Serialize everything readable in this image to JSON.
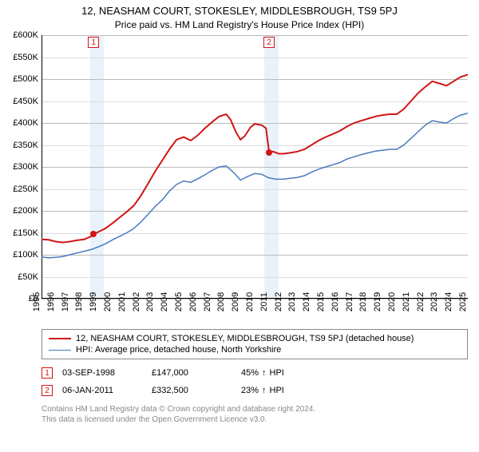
{
  "title": {
    "line1": "12, NEASHAM COURT, STOKESLEY, MIDDLESBROUGH, TS9 5PJ",
    "line2": "Price paid vs. HM Land Registry's House Price Index (HPI)"
  },
  "chart": {
    "type": "line",
    "ylim": [
      0,
      600000
    ],
    "ytick_step": 50000,
    "xlim": [
      1995,
      2025
    ],
    "xtick_step": 1,
    "currency_prefix": "£",
    "grid_color": "#dddddd",
    "grid_color_dark": "#bbbbbb",
    "axis_color": "#000000",
    "background_color": "#ffffff",
    "shade_color": "#e9f2fb",
    "shade_ranges": [
      [
        1998.4,
        1999.4
      ],
      [
        2010.7,
        2011.7
      ]
    ],
    "markers_top": [
      {
        "n": "1",
        "x": 1998.67,
        "color": "#d01515"
      },
      {
        "n": "2",
        "x": 2011.02,
        "color": "#d01515"
      }
    ],
    "sale_points": [
      {
        "x": 1998.67,
        "y": 147000,
        "color": "#d01515"
      },
      {
        "x": 2011.02,
        "y": 332500,
        "color": "#d01515"
      }
    ],
    "series": [
      {
        "name": "property",
        "color": "#d01515",
        "width": 2,
        "points": [
          [
            1995.0,
            135000
          ],
          [
            1995.5,
            134000
          ],
          [
            1996.0,
            130000
          ],
          [
            1996.5,
            128000
          ],
          [
            1997.0,
            130000
          ],
          [
            1997.5,
            133000
          ],
          [
            1998.0,
            135000
          ],
          [
            1998.5,
            142000
          ],
          [
            1998.67,
            147000
          ],
          [
            1999.0,
            152000
          ],
          [
            1999.5,
            160000
          ],
          [
            2000.0,
            172000
          ],
          [
            2000.5,
            185000
          ],
          [
            2001.0,
            198000
          ],
          [
            2001.5,
            212000
          ],
          [
            2002.0,
            235000
          ],
          [
            2002.5,
            262000
          ],
          [
            2003.0,
            290000
          ],
          [
            2003.5,
            315000
          ],
          [
            2004.0,
            340000
          ],
          [
            2004.5,
            362000
          ],
          [
            2005.0,
            368000
          ],
          [
            2005.5,
            360000
          ],
          [
            2006.0,
            372000
          ],
          [
            2006.5,
            388000
          ],
          [
            2007.0,
            402000
          ],
          [
            2007.5,
            415000
          ],
          [
            2008.0,
            420000
          ],
          [
            2008.3,
            408000
          ],
          [
            2008.7,
            378000
          ],
          [
            2009.0,
            362000
          ],
          [
            2009.3,
            370000
          ],
          [
            2009.7,
            390000
          ],
          [
            2010.0,
            398000
          ],
          [
            2010.5,
            395000
          ],
          [
            2010.8,
            388000
          ],
          [
            2011.02,
            332500
          ],
          [
            2011.3,
            335000
          ],
          [
            2011.7,
            330000
          ],
          [
            2012.0,
            330000
          ],
          [
            2012.5,
            332000
          ],
          [
            2013.0,
            335000
          ],
          [
            2013.5,
            340000
          ],
          [
            2014.0,
            350000
          ],
          [
            2014.5,
            360000
          ],
          [
            2015.0,
            368000
          ],
          [
            2015.5,
            375000
          ],
          [
            2016.0,
            382000
          ],
          [
            2016.5,
            392000
          ],
          [
            2017.0,
            400000
          ],
          [
            2017.5,
            405000
          ],
          [
            2018.0,
            410000
          ],
          [
            2018.5,
            415000
          ],
          [
            2019.0,
            418000
          ],
          [
            2019.5,
            420000
          ],
          [
            2020.0,
            420000
          ],
          [
            2020.5,
            432000
          ],
          [
            2021.0,
            450000
          ],
          [
            2021.5,
            468000
          ],
          [
            2022.0,
            482000
          ],
          [
            2022.5,
            495000
          ],
          [
            2023.0,
            490000
          ],
          [
            2023.5,
            485000
          ],
          [
            2024.0,
            495000
          ],
          [
            2024.5,
            505000
          ],
          [
            2025.0,
            510000
          ]
        ]
      },
      {
        "name": "hpi",
        "color": "#4a7abf",
        "width": 1.5,
        "points": [
          [
            1995.0,
            95000
          ],
          [
            1995.5,
            93000
          ],
          [
            1996.0,
            94000
          ],
          [
            1996.5,
            96000
          ],
          [
            1997.0,
            100000
          ],
          [
            1997.5,
            104000
          ],
          [
            1998.0,
            108000
          ],
          [
            1998.5,
            112000
          ],
          [
            1999.0,
            118000
          ],
          [
            1999.5,
            125000
          ],
          [
            2000.0,
            134000
          ],
          [
            2000.5,
            142000
          ],
          [
            2001.0,
            150000
          ],
          [
            2001.5,
            160000
          ],
          [
            2002.0,
            175000
          ],
          [
            2002.5,
            192000
          ],
          [
            2003.0,
            210000
          ],
          [
            2003.5,
            225000
          ],
          [
            2004.0,
            245000
          ],
          [
            2004.5,
            260000
          ],
          [
            2005.0,
            268000
          ],
          [
            2005.5,
            265000
          ],
          [
            2006.0,
            273000
          ],
          [
            2006.5,
            282000
          ],
          [
            2007.0,
            292000
          ],
          [
            2007.5,
            300000
          ],
          [
            2008.0,
            302000
          ],
          [
            2008.5,
            288000
          ],
          [
            2009.0,
            270000
          ],
          [
            2009.5,
            278000
          ],
          [
            2010.0,
            285000
          ],
          [
            2010.5,
            283000
          ],
          [
            2011.0,
            275000
          ],
          [
            2011.5,
            272000
          ],
          [
            2012.0,
            272000
          ],
          [
            2012.5,
            274000
          ],
          [
            2013.0,
            276000
          ],
          [
            2013.5,
            280000
          ],
          [
            2014.0,
            288000
          ],
          [
            2014.5,
            295000
          ],
          [
            2015.0,
            300000
          ],
          [
            2015.5,
            305000
          ],
          [
            2016.0,
            310000
          ],
          [
            2016.5,
            318000
          ],
          [
            2017.0,
            323000
          ],
          [
            2017.5,
            328000
          ],
          [
            2018.0,
            332000
          ],
          [
            2018.5,
            336000
          ],
          [
            2019.0,
            338000
          ],
          [
            2019.5,
            340000
          ],
          [
            2020.0,
            340000
          ],
          [
            2020.5,
            350000
          ],
          [
            2021.0,
            365000
          ],
          [
            2021.5,
            380000
          ],
          [
            2022.0,
            395000
          ],
          [
            2022.5,
            405000
          ],
          [
            2023.0,
            402000
          ],
          [
            2023.5,
            400000
          ],
          [
            2024.0,
            410000
          ],
          [
            2024.5,
            418000
          ],
          [
            2025.0,
            422000
          ]
        ]
      }
    ]
  },
  "legend": {
    "items": [
      {
        "color": "#d01515",
        "width": 2,
        "label": "12, NEASHAM COURT, STOKESLEY, MIDDLESBROUGH, TS9 5PJ (detached house)"
      },
      {
        "color": "#4a7abf",
        "width": 1.5,
        "label": "HPI: Average price, detached house, North Yorkshire"
      }
    ]
  },
  "events": [
    {
      "n": "1",
      "color": "#d01515",
      "date": "03-SEP-1998",
      "price": "£147,000",
      "hpi_pct": "45%",
      "hpi_dir": "↑",
      "hpi_label": "HPI"
    },
    {
      "n": "2",
      "color": "#d01515",
      "date": "06-JAN-2011",
      "price": "£332,500",
      "hpi_pct": "23%",
      "hpi_dir": "↑",
      "hpi_label": "HPI"
    }
  ],
  "attribution": {
    "line1": "Contains HM Land Registry data © Crown copyright and database right 2024.",
    "line2": "This data is licensed under the Open Government Licence v3.0."
  }
}
